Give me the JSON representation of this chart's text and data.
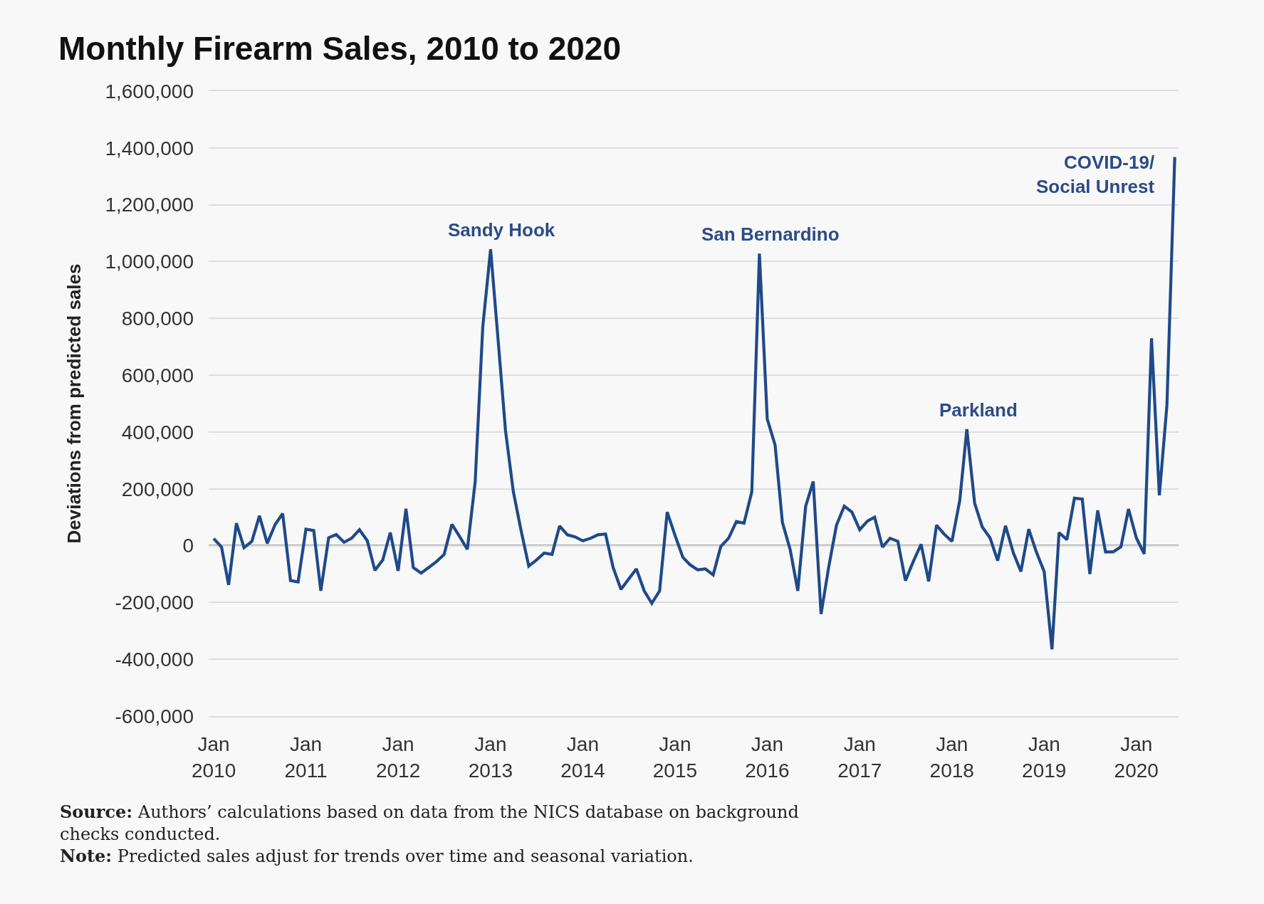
{
  "chart_data": {
    "type": "line",
    "title": "Monthly Firearm Sales, 2010 to 2020",
    "ylabel": "Deviations from predicted sales",
    "x": [
      "2010-01",
      "2010-02",
      "2010-03",
      "2010-04",
      "2010-05",
      "2010-06",
      "2010-07",
      "2010-08",
      "2010-09",
      "2010-10",
      "2010-11",
      "2010-12",
      "2011-01",
      "2011-02",
      "2011-03",
      "2011-04",
      "2011-05",
      "2011-06",
      "2011-07",
      "2011-08",
      "2011-09",
      "2011-10",
      "2011-11",
      "2011-12",
      "2012-01",
      "2012-02",
      "2012-03",
      "2012-04",
      "2012-05",
      "2012-06",
      "2012-07",
      "2012-08",
      "2012-09",
      "2012-10",
      "2012-11",
      "2012-12",
      "2013-01",
      "2013-02",
      "2013-03",
      "2013-04",
      "2013-05",
      "2013-06",
      "2013-07",
      "2013-08",
      "2013-09",
      "2013-10",
      "2013-11",
      "2013-12",
      "2014-01",
      "2014-02",
      "2014-03",
      "2014-04",
      "2014-05",
      "2014-06",
      "2014-07",
      "2014-08",
      "2014-09",
      "2014-10",
      "2014-11",
      "2014-12",
      "2015-01",
      "2015-02",
      "2015-03",
      "2015-04",
      "2015-05",
      "2015-06",
      "2015-07",
      "2015-08",
      "2015-09",
      "2015-10",
      "2015-11",
      "2015-12",
      "2016-01",
      "2016-02",
      "2016-03",
      "2016-04",
      "2016-05",
      "2016-06",
      "2016-07",
      "2016-08",
      "2016-09",
      "2016-10",
      "2016-11",
      "2016-12",
      "2017-01",
      "2017-02",
      "2017-03",
      "2017-04",
      "2017-05",
      "2017-06",
      "2017-07",
      "2017-08",
      "2017-09",
      "2017-10",
      "2017-11",
      "2017-12",
      "2018-01",
      "2018-02",
      "2018-03",
      "2018-04",
      "2018-05",
      "2018-06",
      "2018-07",
      "2018-08",
      "2018-09",
      "2018-10",
      "2018-11",
      "2018-12",
      "2019-01",
      "2019-02",
      "2019-03",
      "2019-04",
      "2019-05",
      "2019-06",
      "2019-07",
      "2019-08",
      "2019-09",
      "2019-10",
      "2019-11",
      "2019-12",
      "2020-01",
      "2020-02",
      "2020-03",
      "2020-04",
      "2020-05",
      "2020-06"
    ],
    "series": [
      {
        "color": "#1f4a8a",
        "values": [
          25000,
          -5000,
          -138000,
          79000,
          -7000,
          15000,
          105000,
          8000,
          74000,
          113000,
          -123000,
          -128000,
          58000,
          53000,
          -159000,
          28000,
          39000,
          12000,
          26000,
          56000,
          17000,
          -87000,
          -51000,
          46000,
          -89000,
          130000,
          -77000,
          -97000,
          -77000,
          -56000,
          -31000,
          75000,
          31000,
          -13000,
          225000,
          770000,
          1043000,
          710000,
          405000,
          190000,
          56000,
          -72000,
          -51000,
          -26000,
          -31000,
          69000,
          38000,
          31000,
          17000,
          26000,
          38000,
          41000,
          -77000,
          -154000,
          -118000,
          -82000,
          -159000,
          -203000,
          -159000,
          118000,
          36000,
          -41000,
          -67000,
          -85000,
          -82000,
          -103000,
          -3000,
          26000,
          85000,
          79000,
          190000,
          1028000,
          446000,
          354000,
          82000,
          -15000,
          -159000,
          138000,
          226000,
          -241000,
          -72000,
          72000,
          139000,
          118000,
          56000,
          87000,
          100000,
          -5000,
          26000,
          15000,
          -123000,
          -56000,
          5000,
          -126000,
          72000,
          41000,
          15000,
          159000,
          410000,
          149000,
          66000,
          27000,
          -53000,
          70000,
          -25000,
          -91000,
          58000,
          -22000,
          -91000,
          -365000,
          46000,
          21000,
          167000,
          164000,
          -100000,
          124000,
          -22000,
          -22000,
          -4000,
          129000,
          27000,
          -29000,
          730000,
          177000,
          494000,
          1368000
        ]
      }
    ],
    "xlim": [
      "2009-12-12",
      "2020-06-16"
    ],
    "xticks": [
      {
        "value": "2010-01",
        "label": "Jan\n2010"
      },
      {
        "value": "2011-01",
        "label": "Jan\n2011"
      },
      {
        "value": "2012-01",
        "label": "Jan\n2012"
      },
      {
        "value": "2013-01",
        "label": "Jan\n2013"
      },
      {
        "value": "2014-01",
        "label": "Jan\n2014"
      },
      {
        "value": "2015-01",
        "label": "Jan\n2015"
      },
      {
        "value": "2016-01",
        "label": "Jan\n2016"
      },
      {
        "value": "2017-01",
        "label": "Jan\n2017"
      },
      {
        "value": "2018-01",
        "label": "Jan\n2018"
      },
      {
        "value": "2019-01",
        "label": "Jan\n2019"
      },
      {
        "value": "2020-01",
        "label": "Jan\n2020"
      }
    ],
    "ylim": [
      -600000,
      1600000
    ],
    "yticks": [
      {
        "value": -600000,
        "label": "-600,000"
      },
      {
        "value": -400000,
        "label": "-400,000"
      },
      {
        "value": -200000,
        "label": "-200,000"
      },
      0,
      {
        "value": 200000,
        "label": "200,000"
      },
      {
        "value": 400000,
        "label": "400,000"
      },
      {
        "value": 600000,
        "label": "600,000"
      },
      {
        "value": 800000,
        "label": "800,000"
      },
      {
        "value": 1000000,
        "label": "1,000,000"
      },
      {
        "value": 1200000,
        "label": "1,200,000"
      },
      {
        "value": 1400000,
        "label": "1,400,000"
      },
      {
        "value": 1600000,
        "label": "1,600,000"
      }
    ],
    "ref_lines": [
      {
        "axis": "y",
        "value": 0,
        "color": "#555555"
      }
    ],
    "grid": "y",
    "annotations": [
      {
        "text": "Sandy Hook",
        "x": "2013-01",
        "y": 1043000
      },
      {
        "text": "San Bernardino",
        "x": "2015-12",
        "y": 1028000
      },
      {
        "text": "Parkland",
        "x": "2018-03",
        "y": 410000
      },
      {
        "text": "COVID-19/\nSocial Unrest",
        "x": "2020-06",
        "y": 1368000
      },
      "Source: Authors’ calculations based on data from the NICS database on background checks conducted.",
      "Note: Predicted sales adjust for trends over time and seasonal variation."
    ]
  }
}
